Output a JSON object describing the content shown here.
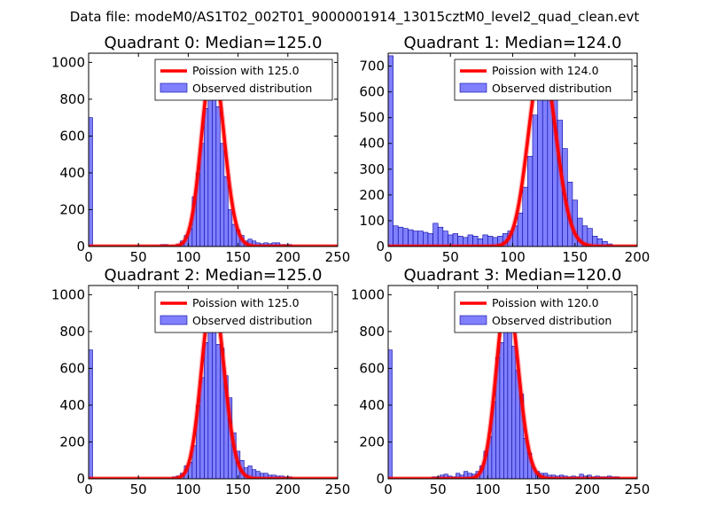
{
  "figure": {
    "suptitle": "Data file: modeM0/AS1T02_002T01_9000001914_13015cztM0_level2_quad_clean.evt"
  },
  "colors": {
    "poisson": "#ff0000",
    "hist_fill": "#8080ff",
    "hist_edge": "#0000a0",
    "axes": "#000000",
    "legend_edge": "#000000"
  },
  "chart_data": [
    {
      "type": "bar",
      "title": "Quadrant 0: Median=125.0",
      "xlim": [
        0,
        250
      ],
      "ylim": [
        0,
        1050
      ],
      "xticks": [
        0,
        50,
        100,
        150,
        200,
        250
      ],
      "yticks": [
        0,
        200,
        400,
        600,
        800,
        1000
      ],
      "median": 125.0,
      "bin_width": 4,
      "legend": {
        "position": "top-right",
        "poisson_label": "Poission with 125.0",
        "hist_label": "Observed distribution"
      },
      "series": [
        {
          "name": "Observed distribution",
          "bins": [
            0,
            72,
            76,
            84,
            88,
            92,
            96,
            100,
            104,
            108,
            112,
            116,
            120,
            124,
            128,
            132,
            136,
            140,
            144,
            148,
            152,
            156,
            160,
            164,
            168,
            172,
            176,
            180,
            184,
            188,
            192,
            196,
            200,
            204,
            208,
            212,
            216,
            220,
            224,
            228
          ],
          "values": [
            700,
            10,
            10,
            8,
            12,
            30,
            60,
            100,
            270,
            400,
            560,
            750,
            980,
            950,
            760,
            560,
            380,
            200,
            120,
            90,
            60,
            30,
            40,
            30,
            20,
            15,
            20,
            15,
            20,
            20,
            10,
            10,
            10,
            5,
            5,
            5,
            5,
            5,
            5,
            5
          ]
        },
        {
          "name": "Poission with 125.0",
          "lambda": 125.0,
          "peak": 1000
        }
      ]
    },
    {
      "type": "bar",
      "title": "Quadrant 1: Median=124.0",
      "xlim": [
        0,
        200
      ],
      "ylim": [
        0,
        750
      ],
      "xticks": [
        0,
        50,
        100,
        150,
        200
      ],
      "yticks": [
        0,
        100,
        200,
        300,
        400,
        500,
        600,
        700
      ],
      "median": 124.0,
      "bin_width": 4,
      "legend": {
        "position": "top-right",
        "poisson_label": "Poission with 124.0",
        "hist_label": "Observed distribution"
      },
      "series": [
        {
          "name": "Observed distribution",
          "bins": [
            0,
            4,
            8,
            12,
            16,
            20,
            24,
            28,
            32,
            36,
            40,
            44,
            48,
            52,
            56,
            60,
            64,
            68,
            72,
            76,
            80,
            84,
            88,
            92,
            96,
            100,
            104,
            108,
            112,
            116,
            120,
            124,
            128,
            132,
            136,
            140,
            144,
            148,
            152,
            156,
            160,
            164,
            168,
            172,
            176
          ],
          "values": [
            740,
            80,
            75,
            70,
            65,
            60,
            60,
            55,
            50,
            90,
            75,
            60,
            45,
            50,
            40,
            35,
            45,
            40,
            30,
            45,
            40,
            35,
            40,
            50,
            60,
            80,
            130,
            230,
            350,
            510,
            640,
            700,
            680,
            610,
            490,
            380,
            250,
            180,
            110,
            80,
            70,
            40,
            30,
            20,
            10
          ]
        },
        {
          "name": "Poission with 124.0",
          "lambda": 124.0,
          "peak": 715
        }
      ]
    },
    {
      "type": "bar",
      "title": "Quadrant 2: Median=125.0",
      "xlim": [
        0,
        250
      ],
      "ylim": [
        0,
        1050
      ],
      "xticks": [
        0,
        50,
        100,
        150,
        200,
        250
      ],
      "yticks": [
        0,
        200,
        400,
        600,
        800,
        1000
      ],
      "median": 125.0,
      "bin_width": 4,
      "legend": {
        "position": "top-right",
        "poisson_label": "Poission with 125.0",
        "hist_label": "Observed distribution"
      },
      "series": [
        {
          "name": "Observed distribution",
          "bins": [
            0,
            84,
            88,
            92,
            96,
            100,
            104,
            108,
            112,
            116,
            120,
            124,
            128,
            132,
            136,
            140,
            144,
            148,
            152,
            156,
            160,
            164,
            168,
            172,
            176,
            180,
            184,
            188,
            192,
            196,
            200,
            204,
            208,
            212,
            216,
            220
          ],
          "values": [
            700,
            10,
            15,
            30,
            70,
            90,
            180,
            400,
            550,
            740,
            960,
            850,
            730,
            710,
            560,
            440,
            250,
            150,
            100,
            60,
            70,
            50,
            40,
            30,
            30,
            20,
            20,
            15,
            15,
            10,
            10,
            5,
            5,
            5,
            5,
            5
          ]
        },
        {
          "name": "Poission with 125.0",
          "lambda": 125.0,
          "peak": 1000
        }
      ]
    },
    {
      "type": "bar",
      "title": "Quadrant 3: Median=120.0",
      "xlim": [
        0,
        250
      ],
      "ylim": [
        0,
        1050
      ],
      "xticks": [
        0,
        50,
        100,
        150,
        200,
        250
      ],
      "yticks": [
        0,
        200,
        400,
        600,
        800,
        1000
      ],
      "median": 120.0,
      "bin_width": 4,
      "legend": {
        "position": "top-right",
        "poisson_label": "Poission with 120.0",
        "hist_label": "Observed distribution"
      },
      "series": [
        {
          "name": "Observed distribution",
          "bins": [
            0,
            44,
            48,
            52,
            56,
            60,
            64,
            68,
            72,
            76,
            80,
            84,
            88,
            92,
            96,
            100,
            104,
            108,
            112,
            116,
            120,
            124,
            128,
            132,
            136,
            140,
            144,
            148,
            152,
            156,
            160,
            164,
            168,
            172,
            176,
            180,
            184,
            188,
            192,
            196,
            200,
            204,
            208,
            212,
            216,
            220,
            224,
            228,
            232,
            236
          ],
          "values": [
            700,
            10,
            10,
            20,
            25,
            15,
            10,
            30,
            20,
            40,
            30,
            25,
            40,
            70,
            150,
            230,
            420,
            660,
            740,
            880,
            980,
            720,
            590,
            460,
            220,
            140,
            60,
            40,
            30,
            30,
            20,
            20,
            15,
            20,
            15,
            10,
            15,
            10,
            25,
            15,
            20,
            10,
            15,
            10,
            10,
            15,
            10,
            10,
            5,
            5
          ]
        },
        {
          "name": "Poission with 120.0",
          "lambda": 120.0,
          "peak": 1000
        }
      ]
    }
  ]
}
